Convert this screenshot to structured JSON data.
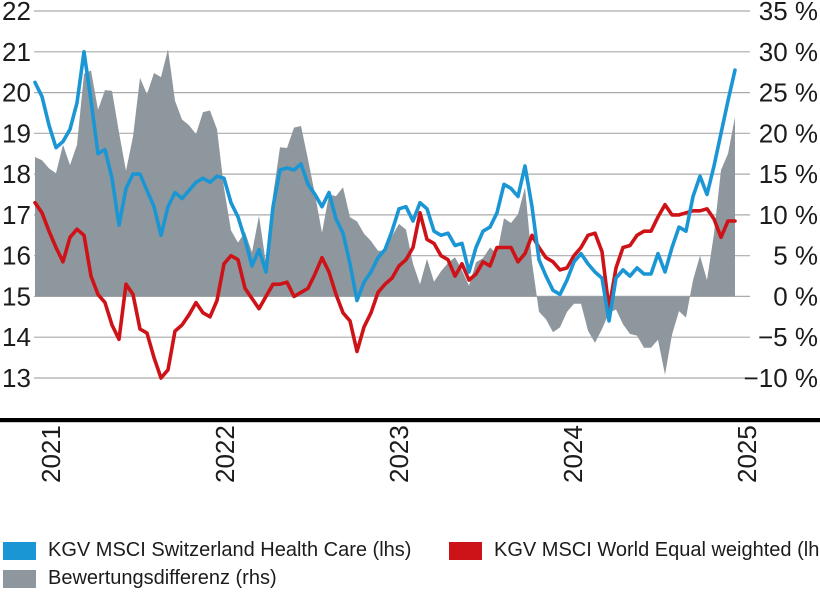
{
  "chart_data": {
    "type": "line",
    "title": "",
    "grid": true,
    "legend_position": "bottom",
    "x_axis": {
      "tick_labels": [
        "2021",
        "2022",
        "2023",
        "2024",
        "2025"
      ],
      "orientation": "vertical-bottom-to-top"
    },
    "left_axis": {
      "tick_labels": [
        "22",
        "21",
        "20",
        "19",
        "18",
        "17",
        "16",
        "15",
        "14",
        "13"
      ],
      "min": 13,
      "max": 22
    },
    "right_axis": {
      "tick_labels": [
        "35 %",
        "30 %",
        "25 %",
        "20 %",
        "15 %",
        "10 %",
        "5 %",
        "0 %",
        "−5 %",
        "−10 %"
      ],
      "min": -10,
      "max": 35
    },
    "x_start_decimal_year": 2020.91,
    "x_step_decimal_year": 0.04,
    "series": [
      {
        "name": "KGV MSCI Switzerland Health Care (lhs)",
        "type": "line",
        "axis": "left",
        "color": "#1B96D4",
        "values": [
          20.25,
          19.9,
          19.2,
          18.65,
          18.8,
          19.1,
          19.75,
          21.0,
          19.8,
          18.5,
          18.6,
          17.9,
          16.75,
          17.65,
          18.0,
          18.0,
          17.6,
          17.2,
          16.5,
          17.2,
          17.55,
          17.4,
          17.6,
          17.8,
          17.9,
          17.8,
          17.95,
          17.9,
          17.3,
          16.95,
          16.4,
          15.75,
          16.15,
          15.6,
          17.2,
          18.1,
          18.15,
          18.1,
          18.25,
          17.75,
          17.5,
          17.2,
          17.55,
          16.9,
          16.55,
          15.8,
          14.9,
          15.35,
          15.6,
          15.95,
          16.15,
          16.6,
          17.15,
          17.2,
          16.85,
          17.3,
          17.15,
          16.6,
          16.5,
          16.55,
          16.25,
          16.3,
          15.6,
          16.2,
          16.6,
          16.7,
          17.05,
          17.75,
          17.65,
          17.45,
          18.2,
          17.2,
          15.9,
          15.5,
          15.15,
          15.05,
          15.4,
          15.85,
          16.05,
          15.8,
          15.6,
          15.45,
          14.4,
          15.45,
          15.65,
          15.5,
          15.7,
          15.55,
          15.55,
          16.05,
          15.6,
          16.2,
          16.7,
          16.6,
          17.45,
          17.95,
          17.5,
          18.2,
          19.0,
          19.8,
          20.55
        ]
      },
      {
        "name": "KGV MSCI World Equal weighted (lhs)",
        "type": "line",
        "axis": "left",
        "color": "#CE1318",
        "values": [
          17.3,
          17.05,
          16.6,
          16.2,
          15.85,
          16.45,
          16.65,
          16.5,
          15.5,
          15.05,
          14.85,
          14.3,
          13.95,
          15.3,
          15.05,
          14.2,
          14.1,
          13.5,
          13.0,
          13.2,
          14.15,
          14.3,
          14.55,
          14.85,
          14.6,
          14.5,
          14.9,
          15.8,
          16.0,
          15.9,
          15.2,
          14.95,
          14.7,
          15.0,
          15.3,
          15.3,
          15.35,
          15.0,
          15.1,
          15.2,
          15.55,
          15.95,
          15.6,
          15.05,
          14.6,
          14.4,
          13.65,
          14.25,
          14.6,
          15.1,
          15.3,
          15.45,
          15.75,
          15.9,
          16.2,
          17.05,
          16.4,
          16.3,
          16.0,
          15.9,
          15.5,
          15.8,
          15.4,
          15.55,
          15.85,
          15.75,
          16.2,
          16.2,
          16.2,
          15.85,
          16.05,
          16.5,
          16.2,
          15.95,
          15.85,
          15.65,
          15.7,
          16.0,
          16.2,
          16.5,
          16.55,
          16.1,
          14.7,
          15.7,
          16.2,
          16.25,
          16.5,
          16.6,
          16.6,
          16.95,
          17.25,
          17.0,
          17.0,
          17.05,
          17.1,
          17.1,
          17.15,
          16.9,
          16.45,
          16.85,
          16.85
        ]
      },
      {
        "name": "Bewertungsdifferenz (rhs)",
        "type": "area",
        "axis": "right",
        "color": "#8E979D",
        "baseline": 0,
        "values": [
          17.1,
          16.7,
          15.7,
          15.1,
          18.6,
          16.1,
          18.6,
          27.3,
          27.7,
          22.9,
          25.3,
          25.2,
          20.1,
          15.4,
          19.6,
          26.8,
          24.8,
          27.4,
          26.9,
          30.3,
          24.0,
          21.7,
          21.0,
          19.9,
          22.6,
          22.8,
          20.5,
          13.3,
          8.1,
          6.6,
          7.9,
          5.4,
          9.9,
          4.0,
          12.4,
          18.3,
          18.2,
          20.7,
          20.9,
          16.8,
          12.5,
          7.8,
          12.5,
          12.3,
          13.4,
          9.7,
          9.2,
          7.7,
          6.8,
          5.6,
          5.6,
          7.4,
          8.9,
          8.2,
          4.0,
          1.5,
          4.6,
          1.8,
          3.1,
          4.1,
          4.8,
          3.2,
          1.3,
          4.2,
          4.7,
          6.0,
          5.2,
          9.6,
          9.0,
          10.1,
          13.4,
          4.2,
          -1.9,
          -2.8,
          -4.4,
          -3.8,
          -1.9,
          -0.9,
          -0.9,
          -4.2,
          -5.7,
          -4.0,
          -2.0,
          -1.6,
          -3.4,
          -4.6,
          -4.8,
          -6.3,
          -6.3,
          -5.3,
          -9.6,
          -4.7,
          -1.8,
          -2.6,
          2.0,
          5.0,
          2.0,
          7.7,
          15.5,
          17.5,
          22.0
        ]
      }
    ],
    "style_colors": {
      "gridline": "#ABABAB",
      "axis_line": "#000000",
      "text": "#1c1c1c"
    }
  },
  "legend": {
    "items": [
      {
        "label": "KGV MSCI Switzerland Health Care (lhs)",
        "color": "#1B96D4"
      },
      {
        "label": "KGV MSCI World Equal weighted (lhs)",
        "color": "#CE1318"
      },
      {
        "label": "Bewertungsdifferenz (rhs)",
        "color": "#8E979D"
      }
    ]
  }
}
